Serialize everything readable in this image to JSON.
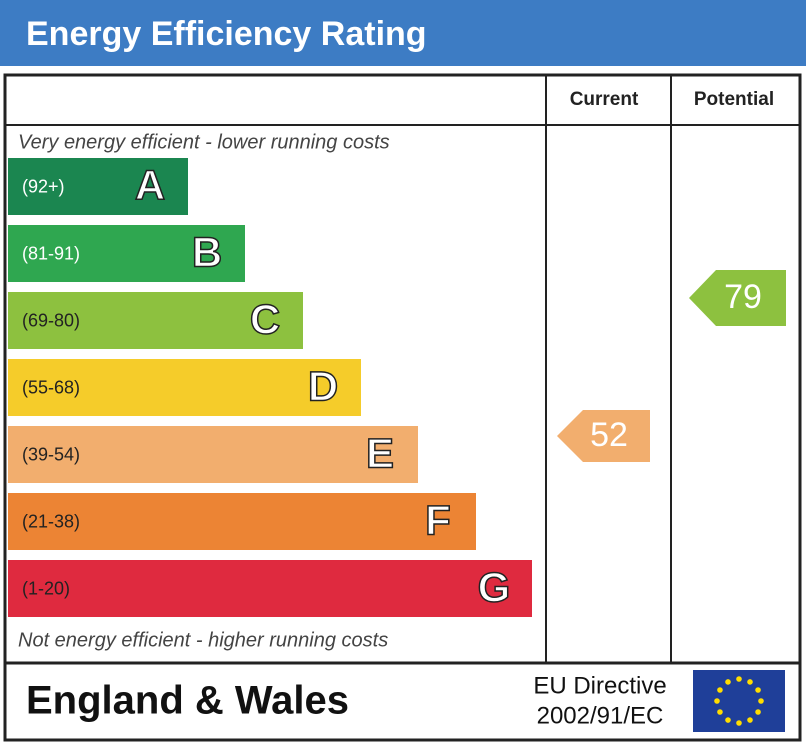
{
  "title": "Energy Efficiency Rating",
  "columns": [
    "Current",
    "Potential"
  ],
  "top_note": "Very energy efficient - lower running costs",
  "bottom_note": "Not energy efficient - higher running costs",
  "bands": [
    {
      "range": "(92+)",
      "letter": "A",
      "color": "#1b8650"
    },
    {
      "range": "(81-91)",
      "letter": "B",
      "color": "#2fa750"
    },
    {
      "range": "(69-80)",
      "letter": "C",
      "color": "#8dc13f"
    },
    {
      "range": "(55-68)",
      "letter": "D",
      "color": "#f5cc2a"
    },
    {
      "range": "(39-54)",
      "letter": "E",
      "color": "#f2ae6e"
    },
    {
      "range": "(21-38)",
      "letter": "F",
      "color": "#ec8434"
    },
    {
      "range": "(1-20)",
      "letter": "G",
      "color": "#df2a3f"
    }
  ],
  "current": {
    "value": 52,
    "color": "#f2ae6e"
  },
  "potential": {
    "value": 79,
    "color": "#8dc13f"
  },
  "footer": {
    "region": "England & Wales",
    "directive": [
      "EU Directive",
      "2002/91/EC"
    ]
  }
}
